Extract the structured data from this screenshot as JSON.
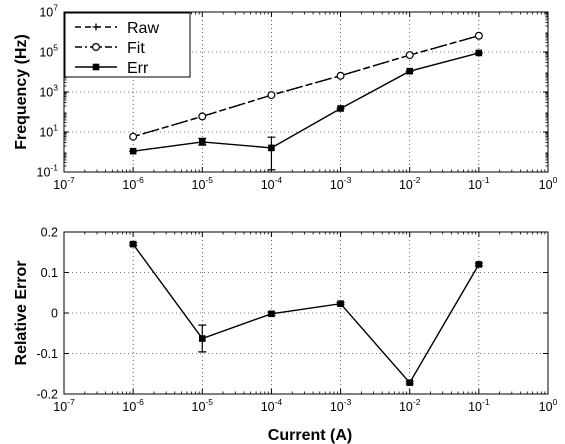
{
  "chart_data": [
    {
      "type": "line",
      "ylabel": "Frequency (Hz)",
      "xscale": "log",
      "yscale": "log",
      "xlim": [
        1e-07,
        1
      ],
      "ylim": [
        0.1,
        10000000
      ],
      "x_ticks": [
        {
          "base": "10",
          "exp": "-7"
        },
        {
          "base": "10",
          "exp": "-6"
        },
        {
          "base": "10",
          "exp": "-5"
        },
        {
          "base": "10",
          "exp": "-4"
        },
        {
          "base": "10",
          "exp": "-3"
        },
        {
          "base": "10",
          "exp": "-2"
        },
        {
          "base": "10",
          "exp": "-1"
        },
        {
          "base": "10",
          "exp": "0"
        }
      ],
      "y_ticks": [
        {
          "base": "10",
          "exp": "-1"
        },
        {
          "base": "10",
          "exp": "1"
        },
        {
          "base": "10",
          "exp": "3"
        },
        {
          "base": "10",
          "exp": "5"
        },
        {
          "base": "10",
          "exp": "7"
        }
      ],
      "grid": true,
      "legend_position": "top-left",
      "series": [
        {
          "name": "Raw",
          "style": "dashed",
          "marker": "plus",
          "x": [
            1e-06,
            1e-05,
            0.0001,
            0.001,
            0.01,
            0.1
          ],
          "y": [
            5.8,
            60,
            700,
            6500,
            70000,
            650000
          ]
        },
        {
          "name": "Fit",
          "style": "dashdot",
          "marker": "circle",
          "x": [
            1e-06,
            1e-05,
            0.0001,
            0.001,
            0.01,
            0.1
          ],
          "y": [
            5.8,
            60,
            700,
            6500,
            70000,
            650000
          ]
        },
        {
          "name": "Err",
          "style": "solid",
          "marker": "square",
          "x": [
            1e-06,
            1e-05,
            0.0001,
            0.001,
            0.01,
            0.1
          ],
          "y": [
            1.1,
            3.2,
            1.6,
            150,
            11000,
            90000
          ],
          "err_low": [
            1.1,
            2.2,
            0.13,
            150,
            11000,
            90000
          ],
          "err_high": [
            1.1,
            4.8,
            5.5,
            150,
            11000,
            90000
          ]
        }
      ]
    },
    {
      "type": "line",
      "xlabel": "Current (A)",
      "ylabel": "Relative Error",
      "xscale": "log",
      "xlim": [
        1e-07,
        1
      ],
      "ylim": [
        -0.2,
        0.2
      ],
      "x_ticks": [
        {
          "base": "10",
          "exp": "-7"
        },
        {
          "base": "10",
          "exp": "-6"
        },
        {
          "base": "10",
          "exp": "-5"
        },
        {
          "base": "10",
          "exp": "-4"
        },
        {
          "base": "10",
          "exp": "-3"
        },
        {
          "base": "10",
          "exp": "-2"
        },
        {
          "base": "10",
          "exp": "-1"
        },
        {
          "base": "10",
          "exp": "0"
        }
      ],
      "y_ticks": [
        "-0.2",
        "-0.1",
        "0",
        "0.1",
        "0.2"
      ],
      "y_tick_values": [
        -0.2,
        -0.1,
        0,
        0.1,
        0.2
      ],
      "grid": true,
      "series": [
        {
          "style": "solid",
          "marker": "square",
          "x": [
            1e-06,
            1e-05,
            0.0001,
            0.001,
            0.01,
            0.1
          ],
          "y": [
            0.17,
            -0.063,
            -0.002,
            0.023,
            -0.172,
            0.12
          ],
          "err_low": [
            0.167,
            -0.096,
            -0.006,
            0.02,
            -0.175,
            0.117
          ],
          "err_high": [
            0.173,
            -0.03,
            0.002,
            0.026,
            -0.169,
            0.123
          ]
        }
      ]
    }
  ]
}
